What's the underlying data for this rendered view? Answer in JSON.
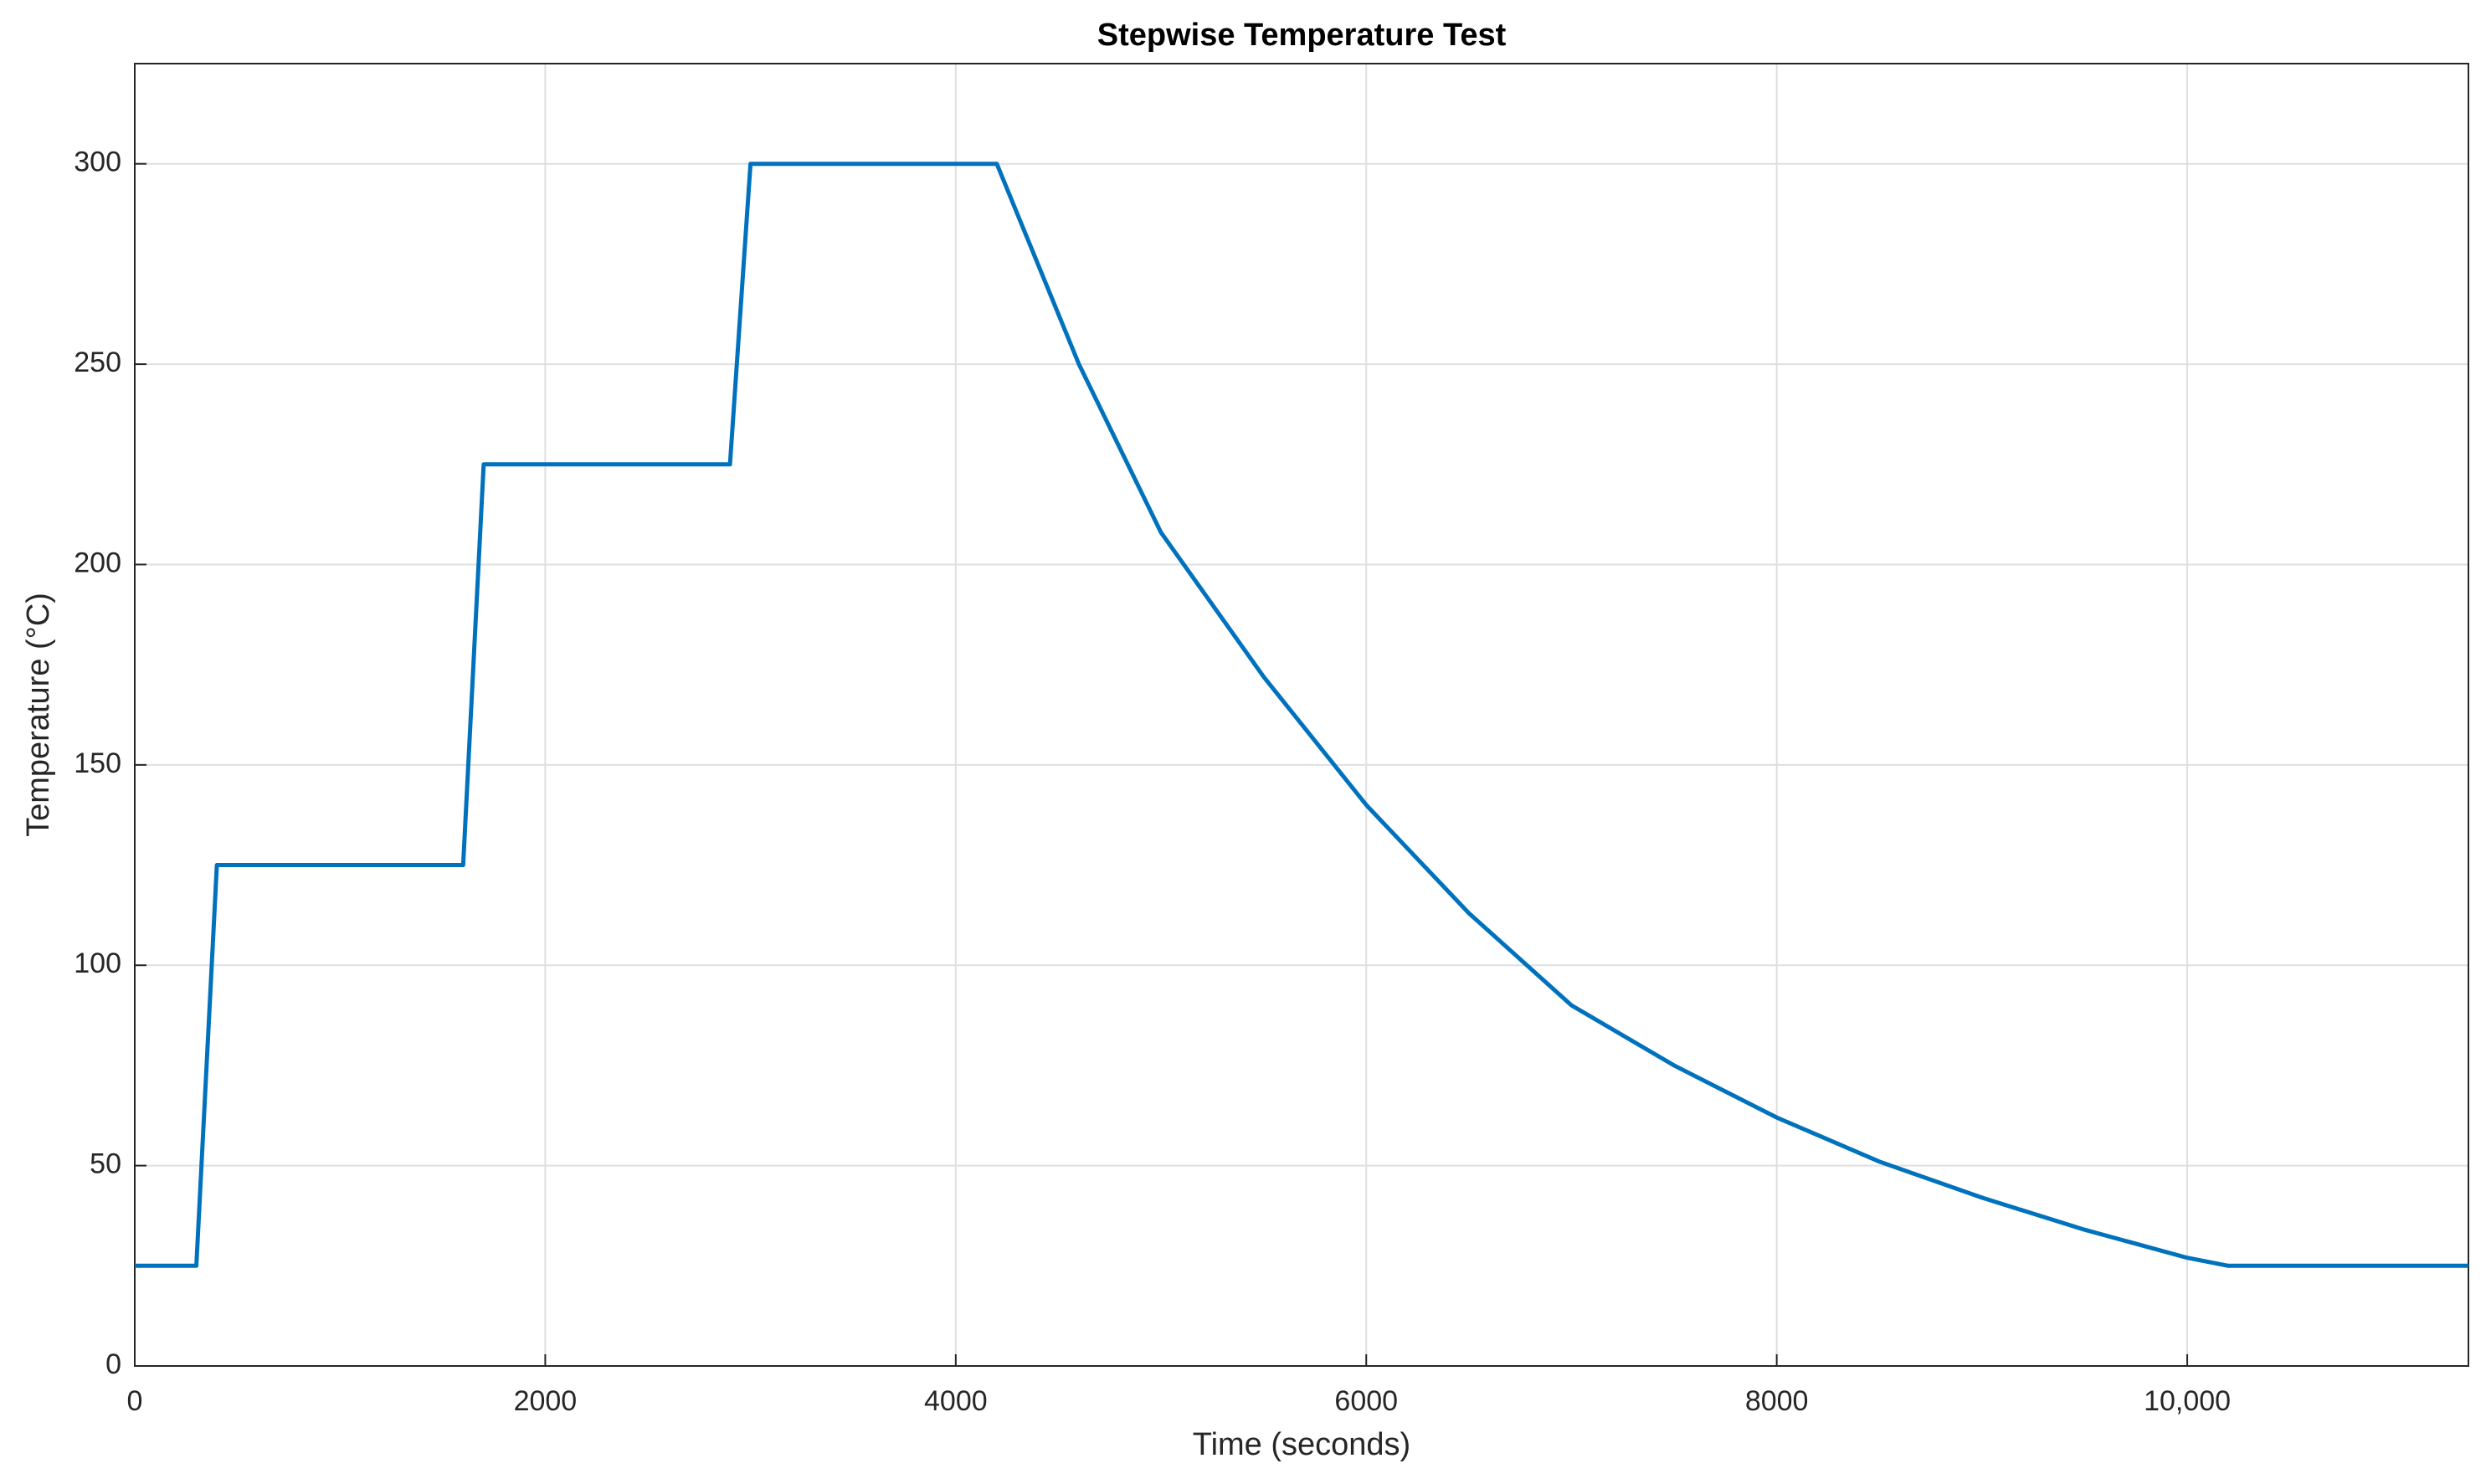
{
  "chart_data": {
    "type": "line",
    "title": "Stepwise Temperature Test",
    "x_label": "Time (seconds)",
    "y_label": "Temperature (°C)",
    "x": [
      0,
      300,
      400,
      1600,
      1700,
      2900,
      3000,
      4200,
      4600,
      5000,
      5500,
      6000,
      6500,
      7000,
      7500,
      8000,
      8500,
      9000,
      9500,
      10000,
      10200,
      11370
    ],
    "series": [
      {
        "name": "Temperature",
        "color": "#0072bd",
        "values": [
          25,
          25,
          125,
          125,
          225,
          225,
          300,
          300,
          250,
          208,
          172,
          140,
          113,
          90,
          75,
          62,
          51,
          42,
          34,
          27,
          25,
          25
        ]
      }
    ],
    "xlim": [
      0,
      11370
    ],
    "ylim": [
      0,
      325
    ],
    "xticks": [
      0,
      2000,
      4000,
      6000,
      8000,
      {
        "value": 10000,
        "label": "10,000"
      }
    ],
    "yticks": [
      0,
      50,
      100,
      150,
      200,
      250,
      300
    ],
    "grid": true
  }
}
